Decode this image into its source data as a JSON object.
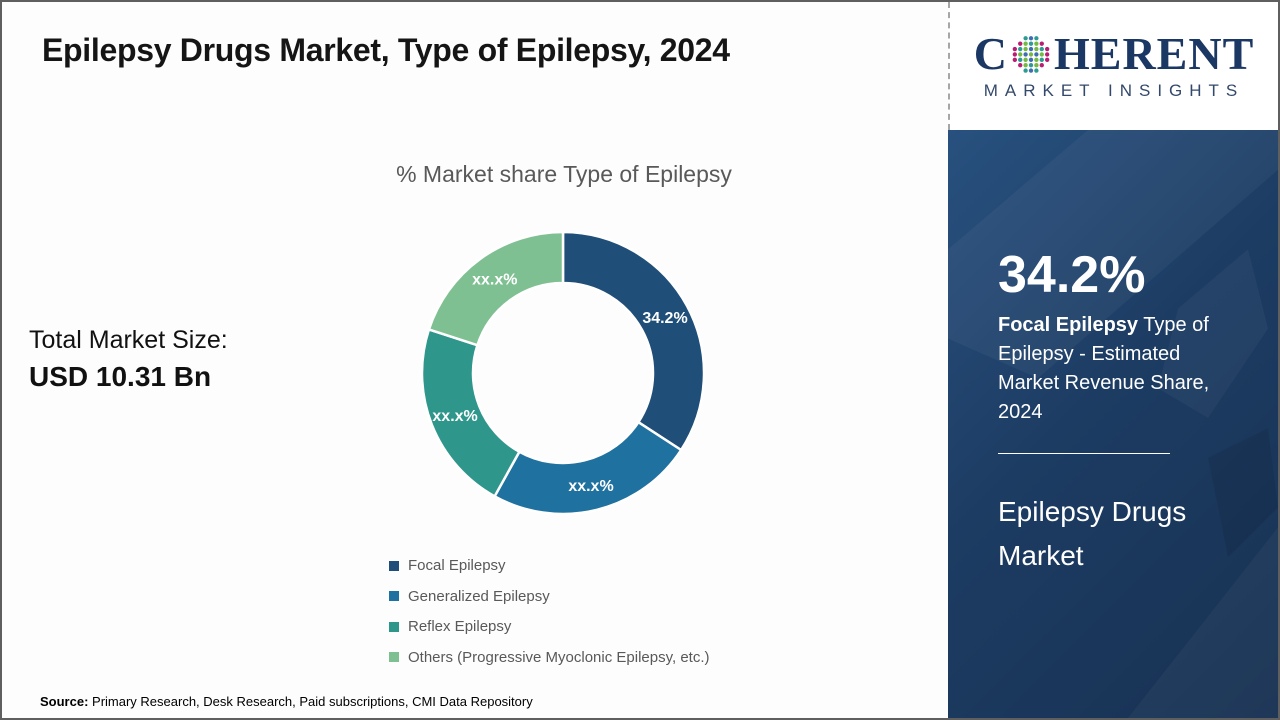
{
  "header": {
    "title": "Epilepsy Drugs Market, Type of Epilepsy, 2024"
  },
  "logo": {
    "brand_first_letter": "C",
    "brand_rest": "HERENT",
    "subtitle": "MARKET INSIGHTS",
    "brand_color": "#1B3764",
    "globe_dot_colors": [
      "#2D9B93",
      "#74B944",
      "#B91D73",
      "#3F6DB3"
    ]
  },
  "left_panel": {
    "label": "Total Market Size:",
    "value": "USD 10.31 Bn"
  },
  "chart_data": {
    "type": "pie",
    "subtype": "donut",
    "title": "% Market share Type of Epilepsy",
    "unit": "%",
    "donut_hole_ratio": 0.64,
    "legend_position": "bottom-left",
    "segments": [
      {
        "label": "Focal Epilepsy",
        "display_value": "34.2%",
        "approx_percent": 34.2,
        "color": "#1F4E79",
        "start_deg": 0,
        "end_deg": 123.1
      },
      {
        "label": "Generalized Epilepsy",
        "display_value": "xx.x%",
        "approx_percent": 23.9,
        "color": "#1F719F",
        "start_deg": 123.1,
        "end_deg": 209
      },
      {
        "label": "Reflex Epilepsy",
        "display_value": "xx.x%",
        "approx_percent": 21.9,
        "color": "#2F968C",
        "start_deg": 209,
        "end_deg": 288
      },
      {
        "label": "Others (Progressive Myoclonic Epilepsy, etc.)",
        "display_value": "xx.x%",
        "approx_percent": 20.0,
        "color": "#7FC092",
        "start_deg": 288,
        "end_deg": 360
      }
    ]
  },
  "sidebar": {
    "background_color": "#1D3C63",
    "stat_value": "34.2%",
    "stat_bold": "Focal Epilepsy",
    "stat_rest": " Type of Epilepsy - Estimated Market Revenue Share, 2024",
    "market_name": "Epilepsy Drugs Market"
  },
  "footer": {
    "source_label": "Source:",
    "source_text": " Primary Research, Desk Research, Paid subscriptions, CMI Data Repository"
  }
}
